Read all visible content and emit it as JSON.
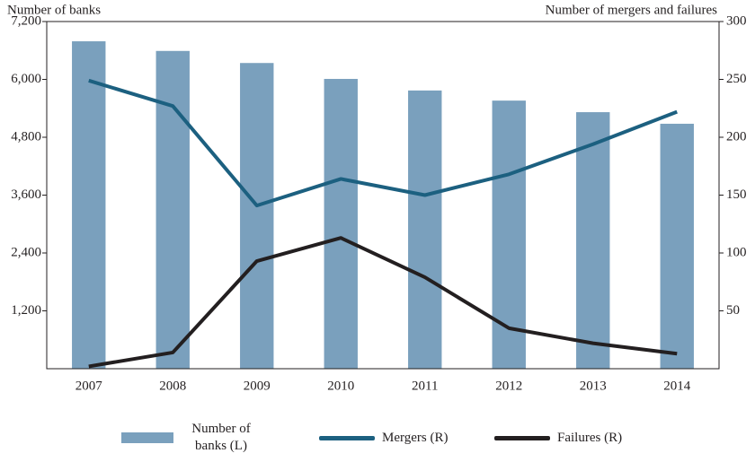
{
  "chart_data": {
    "type": "bar-line",
    "y_label": "Number of banks",
    "y2_label": "Number of mergers and failures",
    "categories": [
      "2007",
      "2008",
      "2009",
      "2010",
      "2011",
      "2012",
      "2013",
      "2014"
    ],
    "series": [
      {
        "name": "Number of banks (L)",
        "type": "bar",
        "color": "#7aa0bd",
        "values": [
          6790,
          6590,
          6340,
          6010,
          5770,
          5560,
          5320,
          5080
        ]
      },
      {
        "name": "Mergers (R)",
        "type": "line",
        "axis": "y2",
        "color": "#1c6080",
        "values": [
          249,
          227,
          141,
          164,
          150,
          168,
          194,
          222
        ]
      },
      {
        "name": "Failures (R)",
        "type": "line",
        "axis": "y2",
        "color": "#231f20",
        "values": [
          2,
          14,
          93,
          113,
          79,
          35,
          22,
          13
        ]
      }
    ],
    "ylim": [
      0,
      7200
    ],
    "yticks": [
      {
        "value": 1200,
        "label": "1,200"
      },
      {
        "value": 2400,
        "label": "2,400"
      },
      {
        "value": 3600,
        "label": "3,600"
      },
      {
        "value": 4800,
        "label": "4,800"
      },
      {
        "value": 6000,
        "label": "6,000"
      },
      {
        "value": 7200,
        "label": "7,200"
      }
    ],
    "y2lim": [
      0,
      300
    ],
    "y2ticks": [
      50,
      100,
      150,
      200,
      250,
      300
    ],
    "legend": "bottom"
  }
}
